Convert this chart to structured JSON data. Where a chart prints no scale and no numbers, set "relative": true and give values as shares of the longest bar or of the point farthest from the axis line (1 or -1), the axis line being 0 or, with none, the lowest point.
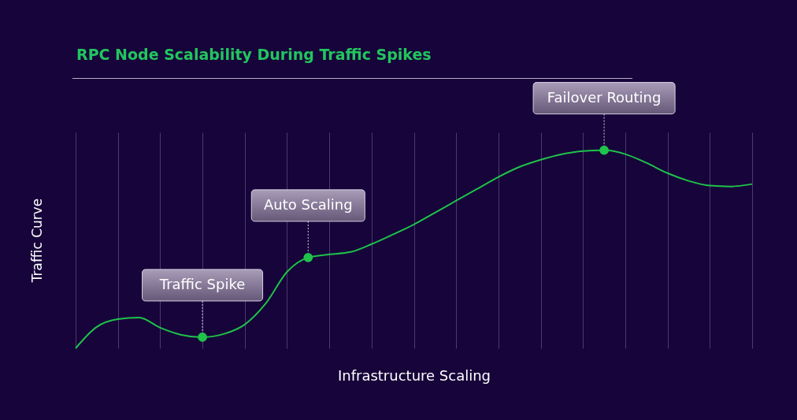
{
  "chart_data": {
    "type": "line",
    "title": "RPC Node Scalability During Traffic Spikes",
    "xlabel": "Infrastructure Scaling",
    "ylabel": "Traffic Curve",
    "relative": true,
    "grid": "x",
    "marker": "none",
    "line_style": "solid",
    "categories": [
      null,
      null,
      null,
      null,
      null,
      null,
      null,
      null,
      null,
      null,
      null,
      null,
      null,
      null,
      null,
      null,
      null,
      null,
      null,
      null,
      null,
      null,
      null,
      null,
      null,
      null,
      null,
      null,
      null,
      null,
      null,
      null,
      null
    ],
    "series": [
      {
        "color": "#1fc24a",
        "values": [
          0,
          0.108,
          0.147,
          0.155,
          0.104,
          0.068,
          0.056,
          0.072,
          0.12,
          0.227,
          0.386,
          0.458,
          0.474,
          0.486,
          0.526,
          0.574,
          0.625,
          0.685,
          0.745,
          0.805,
          0.865,
          0.916,
          0.952,
          0.98,
          0.996,
          1,
          0.98,
          0.936,
          0.884,
          0.845,
          0.821,
          0.817,
          0.829
        ]
      }
    ],
    "annotations": [
      {
        "text": "Traffic Spike",
        "y": 0.056
      },
      {
        "text": "Auto Scaling",
        "y": 0.458
      },
      {
        "text": "Failover Routing",
        "y": 1
      }
    ]
  }
}
